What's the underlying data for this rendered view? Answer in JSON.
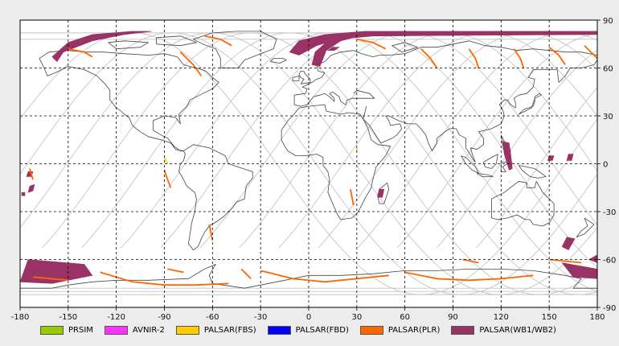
{
  "map": {
    "lon_ticks": [
      "-180",
      "-150",
      "-120",
      "-90",
      "-60",
      "-30",
      "0",
      "30",
      "60",
      "90",
      "120",
      "150",
      "180"
    ],
    "lat_ticks": [
      "90",
      "60",
      "30",
      "0",
      "-30",
      "-60",
      "-90"
    ],
    "lon_range": [
      -180,
      180
    ],
    "lat_range": [
      -90,
      90
    ],
    "grid": "dashed"
  },
  "legend": {
    "items": [
      {
        "label": "PRSIM",
        "color": "#99cc00"
      },
      {
        "label": "AVNIR-2",
        "color": "#ff33ff"
      },
      {
        "label": "PALSAR(FBS)",
        "color": "#ffcc00"
      },
      {
        "label": "PALSAR(FBD)",
        "color": "#0000ff"
      },
      {
        "label": "PALSAR(PLR)",
        "color": "#ff6600"
      },
      {
        "label": "PALSAR(WB1/WB2)",
        "color": "#993366"
      }
    ]
  },
  "colors": {
    "background": "#ececec",
    "map_bg": "#ffffff",
    "coast": "#444444",
    "orbit": "#c4c4c4",
    "wb": "#993366",
    "plr": "#ff6600",
    "fbs": "#ffcc00"
  }
}
